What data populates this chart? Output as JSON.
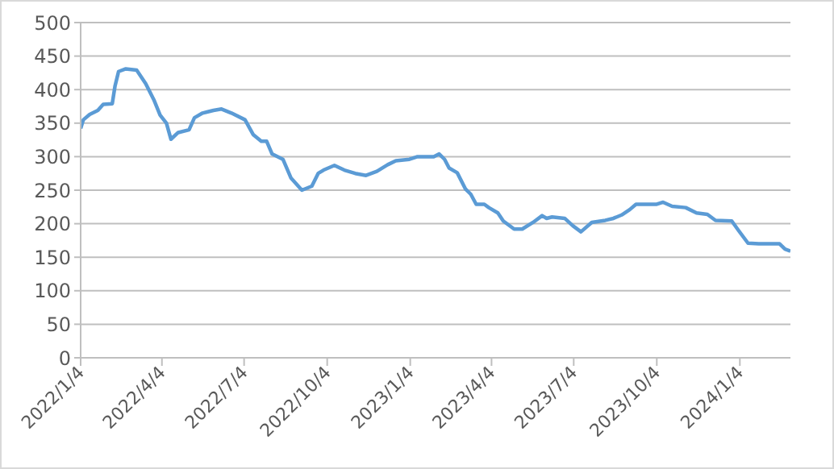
{
  "chart_data": {
    "type": "line",
    "color": "#5b9bd5",
    "grid": "y",
    "marker": "none",
    "line_style": "solid",
    "ylim": [
      0,
      500
    ],
    "yticks": [
      0,
      50,
      100,
      150,
      200,
      250,
      300,
      350,
      400,
      450,
      500
    ],
    "xlim": [
      "2022-01-04",
      "2024-02-29"
    ],
    "xticks": [
      {
        "value": "2022-01-04",
        "label": "2022/1/4"
      },
      {
        "value": "2022-04-04",
        "label": "2022/4/4"
      },
      {
        "value": "2022-07-04",
        "label": "2022/7/4"
      },
      {
        "value": "2022-10-04",
        "label": "2022/10/4"
      },
      {
        "value": "2023-01-04",
        "label": "2023/1/4"
      },
      {
        "value": "2023-04-04",
        "label": "2023/4/4"
      },
      {
        "value": "2023-07-04",
        "label": "2023/7/4"
      },
      {
        "value": "2023-10-04",
        "label": "2023/10/4"
      },
      {
        "value": "2024-01-04",
        "label": "2024/1/4"
      }
    ],
    "x": [
      "2022-01-04",
      "2022-01-07",
      "2022-01-14",
      "2022-01-23",
      "2022-01-29",
      "2022-02-08",
      "2022-02-11",
      "2022-02-15",
      "2022-02-23",
      "2022-03-07",
      "2022-03-17",
      "2022-03-26",
      "2022-04-02",
      "2022-04-09",
      "2022-04-14",
      "2022-04-22",
      "2022-05-04",
      "2022-05-10",
      "2022-05-19",
      "2022-05-31",
      "2022-06-09",
      "2022-06-20",
      "2022-07-05",
      "2022-07-14",
      "2022-07-23",
      "2022-07-29",
      "2022-08-04",
      "2022-08-16",
      "2022-08-25",
      "2022-09-06",
      "2022-09-17",
      "2022-09-24",
      "2022-09-30",
      "2022-10-12",
      "2022-10-23",
      "2022-11-04",
      "2022-11-16",
      "2022-11-28",
      "2022-12-10",
      "2022-12-19",
      "2023-01-03",
      "2023-01-12",
      "2023-01-30",
      "2023-02-05",
      "2023-02-11",
      "2023-02-16",
      "2023-02-25",
      "2023-03-06",
      "2023-03-12",
      "2023-03-18",
      "2023-03-27",
      "2023-04-01",
      "2023-04-11",
      "2023-04-17",
      "2023-04-29",
      "2023-05-08",
      "2023-05-20",
      "2023-05-30",
      "2023-06-04",
      "2023-06-10",
      "2023-06-24",
      "2023-07-03",
      "2023-07-12",
      "2023-07-24",
      "2023-08-08",
      "2023-08-17",
      "2023-08-26",
      "2023-09-04",
      "2023-09-11",
      "2023-10-04",
      "2023-10-11",
      "2023-10-21",
      "2023-11-05",
      "2023-11-17",
      "2023-11-29",
      "2023-12-08",
      "2023-12-26",
      "2024-01-03",
      "2024-01-13",
      "2024-01-25",
      "2024-02-17",
      "2024-02-23",
      "2024-02-29"
    ],
    "values": [
      342,
      355,
      363,
      369,
      378,
      379,
      405,
      427,
      431,
      429,
      409,
      385,
      362,
      350,
      326,
      336,
      340,
      358,
      365,
      369,
      371,
      365,
      355,
      333,
      323,
      323,
      304,
      296,
      268,
      250,
      256,
      275,
      280,
      287,
      280,
      275,
      272,
      278,
      288,
      294,
      296,
      300,
      300,
      304,
      296,
      283,
      276,
      252,
      244,
      229,
      229,
      224,
      216,
      204,
      192,
      192,
      202,
      212,
      208,
      210,
      208,
      197,
      188,
      202,
      205,
      208,
      213,
      221,
      229,
      229,
      232,
      226,
      224,
      216,
      214,
      205,
      204,
      189,
      171,
      170,
      170,
      162,
      159
    ]
  }
}
